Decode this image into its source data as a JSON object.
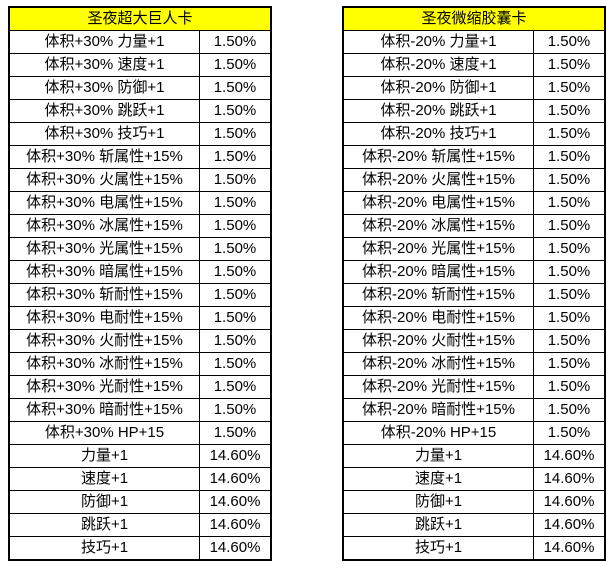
{
  "colors": {
    "page_bg": "#ffffff",
    "header_bg": "#ffff00",
    "border": "#000000",
    "text": "#000000",
    "cell_bg": "#ffffff"
  },
  "tables": [
    {
      "title": "圣夜超大巨人卡",
      "rows": [
        {
          "label": "体积+30% 力量+1",
          "rate": "1.50%"
        },
        {
          "label": "体积+30% 速度+1",
          "rate": "1.50%"
        },
        {
          "label": "体积+30% 防御+1",
          "rate": "1.50%"
        },
        {
          "label": "体积+30% 跳跃+1",
          "rate": "1.50%"
        },
        {
          "label": "体积+30% 技巧+1",
          "rate": "1.50%"
        },
        {
          "label": "体积+30% 斩属性+15%",
          "rate": "1.50%"
        },
        {
          "label": "体积+30% 火属性+15%",
          "rate": "1.50%"
        },
        {
          "label": "体积+30% 电属性+15%",
          "rate": "1.50%"
        },
        {
          "label": "体积+30% 冰属性+15%",
          "rate": "1.50%"
        },
        {
          "label": "体积+30% 光属性+15%",
          "rate": "1.50%"
        },
        {
          "label": "体积+30% 暗属性+15%",
          "rate": "1.50%"
        },
        {
          "label": "体积+30% 斩耐性+15%",
          "rate": "1.50%"
        },
        {
          "label": "体积+30% 电耐性+15%",
          "rate": "1.50%"
        },
        {
          "label": "体积+30% 火耐性+15%",
          "rate": "1.50%"
        },
        {
          "label": "体积+30% 冰耐性+15%",
          "rate": "1.50%"
        },
        {
          "label": "体积+30% 光耐性+15%",
          "rate": "1.50%"
        },
        {
          "label": "体积+30% 暗耐性+15%",
          "rate": "1.50%"
        },
        {
          "label": "体积+30% HP+15",
          "rate": "1.50%"
        },
        {
          "label": "力量+1",
          "rate": "14.60%"
        },
        {
          "label": "速度+1",
          "rate": "14.60%"
        },
        {
          "label": "防御+1",
          "rate": "14.60%"
        },
        {
          "label": "跳跃+1",
          "rate": "14.60%"
        },
        {
          "label": "技巧+1",
          "rate": "14.60%"
        }
      ]
    },
    {
      "title": "圣夜微缩胶囊卡",
      "rows": [
        {
          "label": "体积-20% 力量+1",
          "rate": "1.50%"
        },
        {
          "label": "体积-20% 速度+1",
          "rate": "1.50%"
        },
        {
          "label": "体积-20% 防御+1",
          "rate": "1.50%"
        },
        {
          "label": "体积-20% 跳跃+1",
          "rate": "1.50%"
        },
        {
          "label": "体积-20% 技巧+1",
          "rate": "1.50%"
        },
        {
          "label": "体积-20% 斩属性+15%",
          "rate": "1.50%"
        },
        {
          "label": "体积-20% 火属性+15%",
          "rate": "1.50%"
        },
        {
          "label": "体积-20% 电属性+15%",
          "rate": "1.50%"
        },
        {
          "label": "体积-20% 冰属性+15%",
          "rate": "1.50%"
        },
        {
          "label": "体积-20% 光属性+15%",
          "rate": "1.50%"
        },
        {
          "label": "体积-20% 暗属性+15%",
          "rate": "1.50%"
        },
        {
          "label": "体积-20% 斩耐性+15%",
          "rate": "1.50%"
        },
        {
          "label": "体积-20% 电耐性+15%",
          "rate": "1.50%"
        },
        {
          "label": "体积-20% 火耐性+15%",
          "rate": "1.50%"
        },
        {
          "label": "体积-20% 冰耐性+15%",
          "rate": "1.50%"
        },
        {
          "label": "体积-20% 光耐性+15%",
          "rate": "1.50%"
        },
        {
          "label": "体积-20% 暗耐性+15%",
          "rate": "1.50%"
        },
        {
          "label": "体积-20% HP+15",
          "rate": "1.50%"
        },
        {
          "label": "力量+1",
          "rate": "14.60%"
        },
        {
          "label": "速度+1",
          "rate": "14.60%"
        },
        {
          "label": "防御+1",
          "rate": "14.60%"
        },
        {
          "label": "跳跃+1",
          "rate": "14.60%"
        },
        {
          "label": "技巧+1",
          "rate": "14.60%"
        }
      ]
    }
  ]
}
